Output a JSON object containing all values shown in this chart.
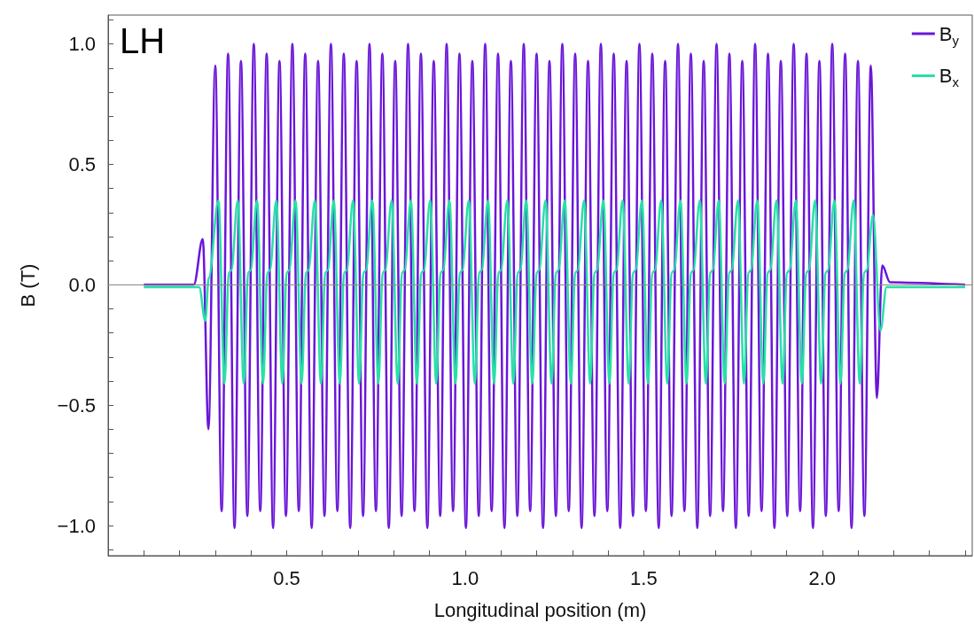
{
  "chart_data": {
    "type": "line",
    "xlabel": "Longitudinal position (m)",
    "ylabel": "B (T)",
    "annotations": [
      "LH"
    ],
    "legend": "top right",
    "xlim": [
      0,
      2.42
    ],
    "ylim": [
      -1.125,
      1.12
    ],
    "xticks": [
      {
        "value": 0.1,
        "label": null
      },
      {
        "value": 0.2,
        "label": null
      },
      {
        "value": 0.3,
        "label": null
      },
      {
        "value": 0.4,
        "label": null
      },
      0.5,
      {
        "value": 0.6,
        "label": null
      },
      {
        "value": 0.7,
        "label": null
      },
      {
        "value": 0.8,
        "label": null
      },
      {
        "value": 0.9,
        "label": null
      },
      {
        "value": 1,
        "label": "1.0"
      },
      {
        "value": 1.1,
        "label": null
      },
      {
        "value": 1.2,
        "label": null
      },
      {
        "value": 1.3,
        "label": null
      },
      {
        "value": 1.4,
        "label": null
      },
      1.5,
      {
        "value": 1.6,
        "label": null
      },
      {
        "value": 1.7,
        "label": null
      },
      {
        "value": 1.8,
        "label": null
      },
      {
        "value": 1.9,
        "label": null
      },
      {
        "value": 2,
        "label": "2.0"
      },
      {
        "value": 2.1,
        "label": null
      },
      {
        "value": 2.2,
        "label": null
      },
      {
        "value": 2.3,
        "label": null
      },
      {
        "value": 2.4,
        "label": null
      }
    ],
    "yticks": [
      {
        "value": -1.1,
        "label": null
      },
      {
        "value": -1,
        "label": "−1.0"
      },
      {
        "value": -0.9,
        "label": null
      },
      {
        "value": -0.8,
        "label": null
      },
      {
        "value": -0.7,
        "label": null
      },
      {
        "value": -0.6,
        "label": null
      },
      {
        "value": -0.5,
        "label": "−0.5"
      },
      {
        "value": -0.4,
        "label": null
      },
      {
        "value": -0.3,
        "label": null
      },
      {
        "value": -0.2,
        "label": null
      },
      {
        "value": -0.1,
        "label": null
      },
      {
        "value": 0,
        "label": "0.0"
      },
      {
        "value": 0.1,
        "label": null
      },
      {
        "value": 0.2,
        "label": null
      },
      {
        "value": 0.3,
        "label": null
      },
      {
        "value": 0.4,
        "label": null
      },
      0.5,
      {
        "value": 0.6,
        "label": null
      },
      {
        "value": 0.7,
        "label": null
      },
      {
        "value": 0.8,
        "label": null
      },
      {
        "value": 0.9,
        "label": null
      },
      {
        "value": 1,
        "label": "1.0"
      },
      {
        "value": 1.1,
        "label": null
      }
    ],
    "ref_lines": [
      {
        "axis": "y",
        "value": 0,
        "color": "#888888"
      }
    ],
    "series": [
      {
        "name": "B$_{y}$",
        "color": "#6a16d8",
        "x": [
          0.1,
          0.24,
          0.265,
          0.281,
          0.3,
          0.318,
          0.336,
          0.354,
          0.372,
          0.39,
          0.408,
          0.426,
          0.444,
          0.462,
          0.48,
          0.498,
          0.516,
          0.534,
          0.552,
          0.57,
          0.588,
          0.606,
          0.624,
          0.642,
          0.66,
          0.678,
          0.696,
          0.714,
          0.732,
          0.75,
          0.768,
          0.786,
          0.804,
          0.822,
          0.84,
          0.858,
          0.876,
          0.894,
          0.912,
          0.93,
          0.948,
          0.966,
          0.984,
          1.002,
          1.02,
          1.038,
          1.056,
          1.074,
          1.092,
          1.11,
          1.128,
          1.146,
          1.164,
          1.182,
          1.2,
          1.218,
          1.236,
          1.254,
          1.272,
          1.29,
          1.308,
          1.326,
          1.344,
          1.362,
          1.38,
          1.398,
          1.416,
          1.434,
          1.452,
          1.47,
          1.488,
          1.506,
          1.524,
          1.542,
          1.56,
          1.578,
          1.596,
          1.614,
          1.632,
          1.65,
          1.668,
          1.686,
          1.704,
          1.722,
          1.74,
          1.758,
          1.776,
          1.794,
          1.812,
          1.83,
          1.848,
          1.866,
          1.884,
          1.902,
          1.92,
          1.938,
          1.956,
          1.974,
          1.992,
          2.01,
          2.028,
          2.046,
          2.064,
          2.082,
          2.1,
          2.118,
          2.136,
          2.153,
          2.168,
          2.19,
          2.4
        ],
        "values": [
          0,
          0,
          0.19,
          -0.6,
          0.91,
          -0.94,
          0.96,
          -1.01,
          0.93,
          -0.96,
          1.0,
          -0.94,
          0.96,
          -1.01,
          0.93,
          -0.96,
          1.0,
          -0.94,
          0.96,
          -1.01,
          0.93,
          -0.96,
          1.0,
          -0.94,
          0.96,
          -1.01,
          0.93,
          -0.96,
          1.0,
          -0.94,
          0.96,
          -1.01,
          0.93,
          -0.96,
          1.0,
          -0.94,
          0.96,
          -1.01,
          0.93,
          -0.96,
          1.0,
          -0.94,
          0.96,
          -1.01,
          0.93,
          -0.96,
          1.0,
          -0.94,
          0.96,
          -1.01,
          0.93,
          -0.96,
          1.0,
          -0.94,
          0.96,
          -1.01,
          0.93,
          -0.96,
          1.0,
          -0.94,
          0.96,
          -1.01,
          0.93,
          -0.96,
          1.0,
          -0.94,
          0.96,
          -1.01,
          0.93,
          -0.96,
          1.0,
          -0.94,
          0.96,
          -1.01,
          0.93,
          -0.96,
          1.0,
          -0.94,
          0.96,
          -1.01,
          0.93,
          -0.96,
          1.0,
          -0.94,
          0.96,
          -1.01,
          0.93,
          -0.96,
          1.0,
          -0.94,
          0.96,
          -1.01,
          0.93,
          -0.96,
          1.0,
          -0.94,
          0.96,
          -1.01,
          0.93,
          -0.96,
          1.0,
          -0.94,
          0.96,
          -1.01,
          0.93,
          -0.96,
          0.91,
          -0.47,
          0.08,
          0.01,
          0
        ]
      },
      {
        "name": "B$_{x}$",
        "color": "#27e0a8",
        "x": [
          0.1,
          0.255,
          0.272,
          0.282,
          0.309,
          0.326,
          0.338,
          0.345,
          0.363,
          0.38,
          0.392,
          0.399,
          0.417,
          0.434,
          0.446,
          0.453,
          0.471,
          0.488,
          0.5,
          0.507,
          0.525,
          0.542,
          0.554,
          0.561,
          0.579,
          0.596,
          0.608,
          0.615,
          0.632,
          0.649,
          0.661,
          0.668,
          0.686,
          0.703,
          0.715,
          0.722,
          0.74,
          0.757,
          0.769,
          0.776,
          0.794,
          0.811,
          0.823,
          0.83,
          0.848,
          0.865,
          0.877,
          0.884,
          0.902,
          0.919,
          0.931,
          0.938,
          0.956,
          0.973,
          0.985,
          0.992,
          1.01,
          1.027,
          1.039,
          1.046,
          1.064,
          1.081,
          1.093,
          1.1,
          1.118,
          1.135,
          1.147,
          1.154,
          1.171,
          1.188,
          1.2,
          1.207,
          1.225,
          1.242,
          1.254,
          1.261,
          1.279,
          1.296,
          1.308,
          1.315,
          1.333,
          1.35,
          1.362,
          1.369,
          1.387,
          1.404,
          1.416,
          1.423,
          1.441,
          1.458,
          1.47,
          1.477,
          1.495,
          1.512,
          1.524,
          1.531,
          1.549,
          1.566,
          1.578,
          1.585,
          1.603,
          1.62,
          1.632,
          1.639,
          1.657,
          1.674,
          1.686,
          1.693,
          1.71,
          1.727,
          1.739,
          1.746,
          1.764,
          1.781,
          1.793,
          1.8,
          1.818,
          1.835,
          1.847,
          1.854,
          1.872,
          1.889,
          1.901,
          1.908,
          1.926,
          1.943,
          1.955,
          1.962,
          1.98,
          1.997,
          2.009,
          2.016,
          2.034,
          2.051,
          2.063,
          2.07,
          2.088,
          2.105,
          2.117,
          2.124,
          2.142,
          2.163,
          2.18,
          2.4
        ],
        "values": [
          -0.01,
          -0.01,
          -0.15,
          0.03,
          0.35,
          -0.41,
          0.05,
          0.06,
          0.35,
          -0.41,
          0.05,
          0.06,
          0.35,
          -0.41,
          0.05,
          0.06,
          0.35,
          -0.41,
          0.05,
          0.06,
          0.35,
          -0.41,
          0.05,
          0.06,
          0.35,
          -0.41,
          0.05,
          0.06,
          0.35,
          -0.41,
          0.05,
          0.06,
          0.35,
          -0.41,
          0.05,
          0.06,
          0.35,
          -0.41,
          0.05,
          0.06,
          0.35,
          -0.41,
          0.05,
          0.06,
          0.35,
          -0.41,
          0.05,
          0.06,
          0.35,
          -0.41,
          0.05,
          0.06,
          0.35,
          -0.41,
          0.05,
          0.06,
          0.35,
          -0.41,
          0.05,
          0.06,
          0.35,
          -0.41,
          0.05,
          0.06,
          0.35,
          -0.41,
          0.05,
          0.06,
          0.35,
          -0.41,
          0.05,
          0.06,
          0.35,
          -0.41,
          0.05,
          0.06,
          0.35,
          -0.41,
          0.05,
          0.06,
          0.35,
          -0.41,
          0.05,
          0.06,
          0.35,
          -0.41,
          0.05,
          0.06,
          0.35,
          -0.41,
          0.05,
          0.06,
          0.35,
          -0.41,
          0.05,
          0.06,
          0.35,
          -0.41,
          0.05,
          0.06,
          0.35,
          -0.41,
          0.05,
          0.06,
          0.35,
          -0.41,
          0.05,
          0.06,
          0.35,
          -0.41,
          0.05,
          0.06,
          0.35,
          -0.41,
          0.05,
          0.06,
          0.35,
          -0.41,
          0.05,
          0.06,
          0.35,
          -0.41,
          0.05,
          0.06,
          0.35,
          -0.41,
          0.05,
          0.06,
          0.35,
          -0.41,
          0.05,
          0.06,
          0.35,
          -0.41,
          0.05,
          0.06,
          0.35,
          -0.41,
          0.05,
          0.06,
          0.29,
          -0.19,
          -0.01,
          -0.01
        ]
      }
    ]
  }
}
